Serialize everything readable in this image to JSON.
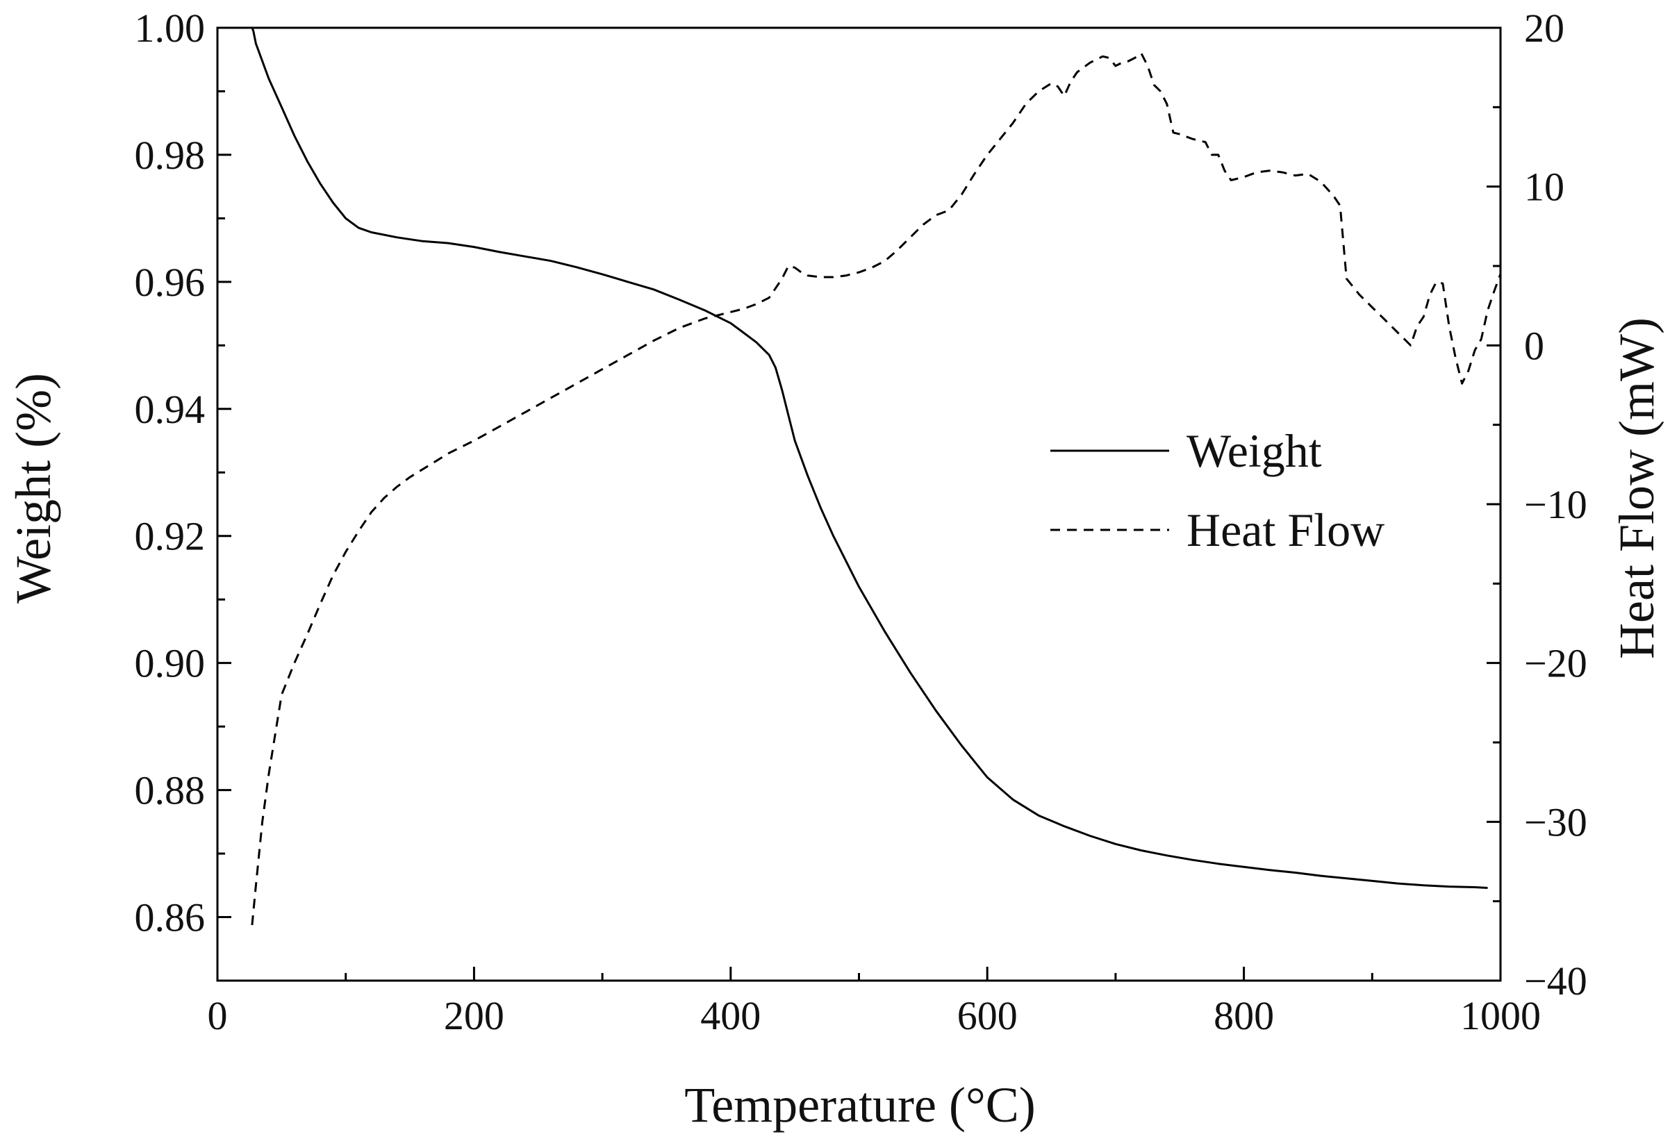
{
  "chart_data": {
    "type": "line",
    "title": "",
    "xlabel": "Temperature (°C)",
    "ylabel": "Weight (%)",
    "y2label": "Heat Flow (mW)",
    "xlim": [
      0,
      1000
    ],
    "ylim": [
      0.85,
      1.0
    ],
    "y2lim": [
      -40,
      20
    ],
    "x_ticks": [
      0,
      200,
      400,
      600,
      800,
      1000
    ],
    "y_ticks": [
      0.86,
      0.88,
      0.9,
      0.92,
      0.94,
      0.96,
      0.98,
      1.0
    ],
    "y_tick_labels": [
      "0.86",
      "0.88",
      "0.90",
      "0.92",
      "0.94",
      "0.96",
      "0.98",
      "1.00"
    ],
    "y2_ticks": [
      -40,
      -30,
      -20,
      -10,
      0,
      10,
      20
    ],
    "y2_tick_labels": [
      "−40",
      "−30",
      "−20",
      "−10",
      "0",
      "10",
      "20"
    ],
    "grid": false,
    "legend_position": "center-right",
    "series": [
      {
        "name": "Weight",
        "axis": "left",
        "style": "solid",
        "color": "#000000",
        "x": [
          27,
          28,
          30,
          40,
          50,
          60,
          70,
          80,
          90,
          100,
          110,
          120,
          140,
          160,
          180,
          200,
          220,
          240,
          260,
          280,
          300,
          320,
          340,
          360,
          380,
          400,
          410,
          420,
          430,
          435,
          440,
          445,
          450,
          460,
          470,
          480,
          500,
          520,
          540,
          560,
          580,
          600,
          620,
          640,
          660,
          680,
          700,
          720,
          740,
          760,
          780,
          800,
          820,
          840,
          860,
          880,
          900,
          920,
          940,
          960,
          980,
          990
        ],
        "values": [
          1.0,
          0.9995,
          0.9975,
          0.992,
          0.9875,
          0.983,
          0.979,
          0.9755,
          0.9725,
          0.97,
          0.9685,
          0.9678,
          0.967,
          0.9664,
          0.9661,
          0.9655,
          0.9647,
          0.964,
          0.9633,
          0.9623,
          0.9612,
          0.96,
          0.9588,
          0.9572,
          0.9555,
          0.9535,
          0.952,
          0.9505,
          0.9485,
          0.9465,
          0.943,
          0.939,
          0.935,
          0.9295,
          0.9245,
          0.92,
          0.912,
          0.905,
          0.8985,
          0.8925,
          0.887,
          0.882,
          0.8785,
          0.876,
          0.8743,
          0.8728,
          0.8715,
          0.8705,
          0.8697,
          0.869,
          0.8684,
          0.8679,
          0.8674,
          0.867,
          0.8665,
          0.8661,
          0.8657,
          0.8653,
          0.865,
          0.8648,
          0.8647,
          0.8646
        ]
      },
      {
        "name": "Heat Flow",
        "axis": "right",
        "style": "dashed",
        "color": "#000000",
        "x": [
          27,
          30,
          35,
          40,
          45,
          50,
          55,
          60,
          70,
          80,
          90,
          100,
          110,
          120,
          130,
          140,
          150,
          160,
          170,
          180,
          190,
          200,
          220,
          240,
          260,
          280,
          300,
          320,
          340,
          360,
          380,
          400,
          410,
          420,
          430,
          440,
          445,
          450,
          455,
          460,
          470,
          480,
          490,
          500,
          510,
          520,
          530,
          540,
          550,
          560,
          570,
          580,
          590,
          600,
          610,
          620,
          630,
          640,
          650,
          655,
          660,
          665,
          670,
          680,
          690,
          695,
          700,
          705,
          710,
          715,
          720,
          725,
          730,
          735,
          740,
          745,
          750,
          760,
          770,
          775,
          780,
          785,
          790,
          800,
          810,
          820,
          830,
          840,
          850,
          860,
          870,
          875,
          880,
          890,
          900,
          910,
          920,
          930,
          935,
          940,
          945,
          950,
          955,
          960,
          965,
          970,
          975,
          980,
          985,
          990,
          995,
          1000
        ],
        "values": [
          -36.5,
          -34.0,
          -30.0,
          -27.0,
          -24.5,
          -22.0,
          -21.0,
          -20.0,
          -18.2,
          -16.3,
          -14.5,
          -13.0,
          -11.7,
          -10.5,
          -9.6,
          -8.9,
          -8.3,
          -7.8,
          -7.3,
          -6.8,
          -6.4,
          -6.0,
          -5.1,
          -4.2,
          -3.3,
          -2.4,
          -1.5,
          -0.6,
          0.3,
          1.1,
          1.7,
          2.1,
          2.3,
          2.6,
          3.0,
          4.2,
          5.0,
          4.9,
          4.6,
          4.4,
          4.3,
          4.3,
          4.4,
          4.6,
          4.9,
          5.3,
          6.0,
          6.8,
          7.6,
          8.2,
          8.5,
          9.5,
          10.8,
          12.0,
          13.0,
          14.0,
          15.2,
          16.0,
          16.5,
          16.3,
          15.7,
          16.6,
          17.2,
          17.8,
          18.2,
          18.1,
          17.6,
          17.8,
          17.9,
          18.1,
          18.4,
          17.6,
          16.4,
          16.0,
          15.2,
          13.4,
          13.3,
          13.0,
          12.8,
          12.0,
          12.0,
          11.0,
          10.4,
          10.6,
          10.9,
          11.0,
          10.9,
          10.7,
          10.8,
          10.3,
          9.4,
          8.8,
          4.2,
          3.2,
          2.4,
          1.6,
          0.8,
          0.0,
          1.2,
          1.8,
          3.2,
          4.0,
          3.9,
          1.2,
          -0.8,
          -2.4,
          -1.6,
          -0.3,
          0.4,
          2.2,
          3.4,
          4.5
        ]
      }
    ]
  }
}
